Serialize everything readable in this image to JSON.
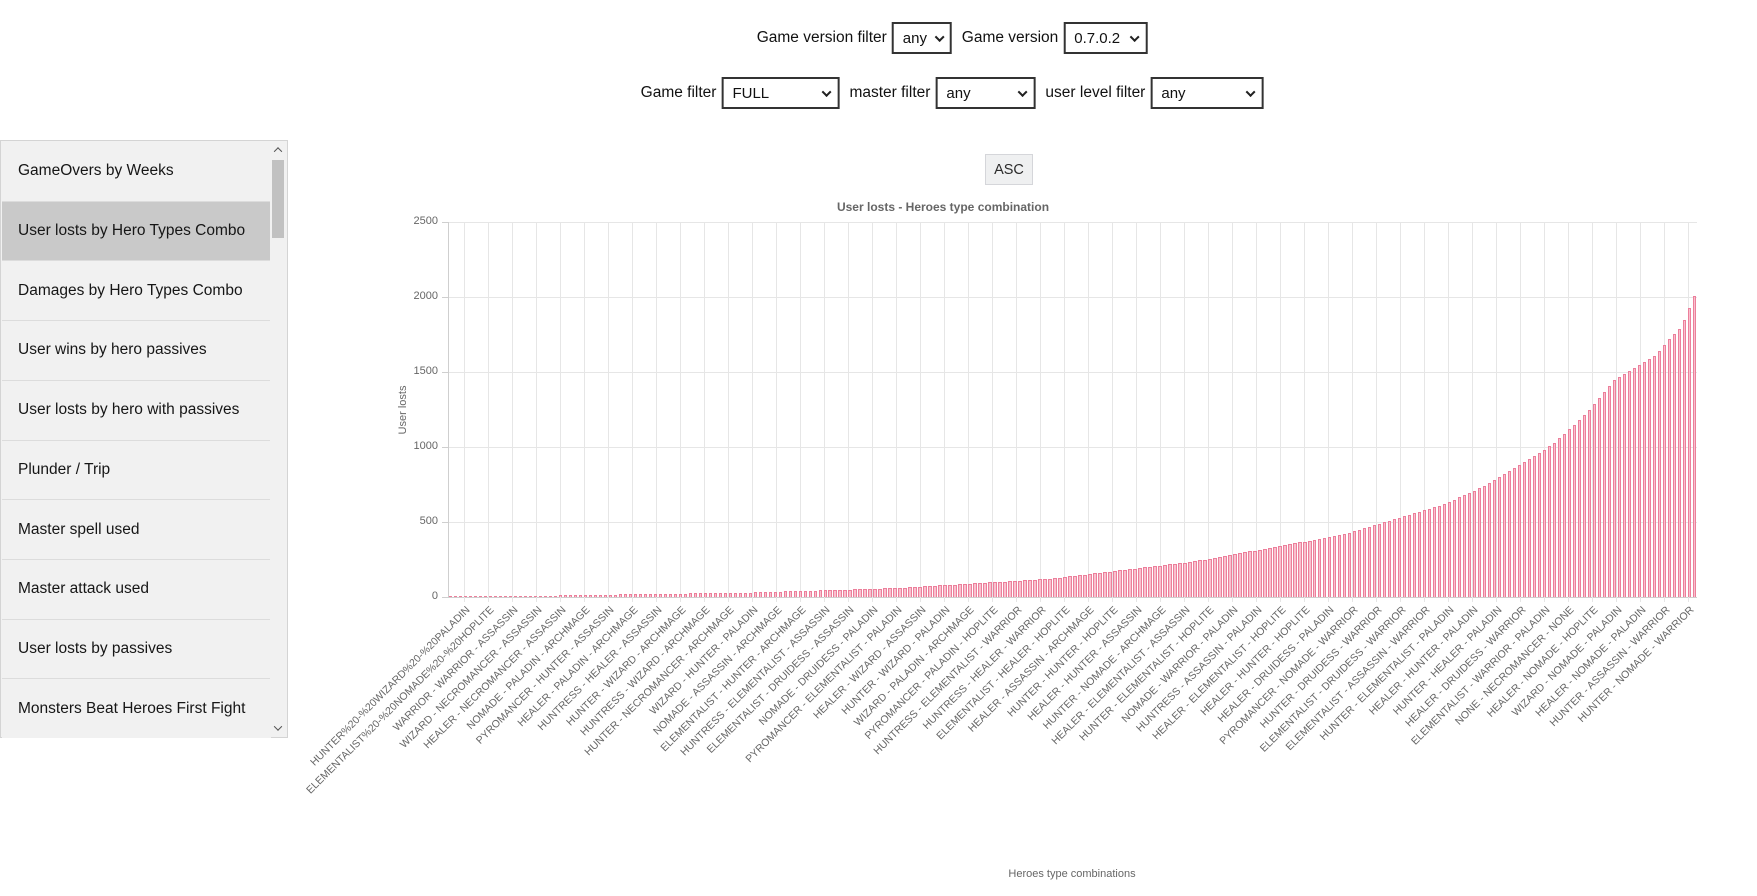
{
  "filters": {
    "row1": [
      {
        "name": "game-version-filter",
        "label": "Game version filter",
        "value": "any"
      },
      {
        "name": "game-version",
        "label": "Game version",
        "value": "0.7.0.2"
      }
    ],
    "row2": [
      {
        "name": "game-filter",
        "label": "Game filter",
        "value": "FULL"
      },
      {
        "name": "master-filter",
        "label": "master filter",
        "value": "any"
      },
      {
        "name": "user-level-filter",
        "label": "user level filter",
        "value": "any"
      }
    ]
  },
  "sidebar": {
    "items": [
      {
        "label": "GameOvers by Weeks",
        "selected": false
      },
      {
        "label": "User losts by Hero Types Combo",
        "selected": true
      },
      {
        "label": "Damages by Hero Types Combo",
        "selected": false
      },
      {
        "label": "User wins by hero passives",
        "selected": false
      },
      {
        "label": "User losts by hero with passives",
        "selected": false
      },
      {
        "label": "Plunder / Trip",
        "selected": false
      },
      {
        "label": "Master spell used",
        "selected": false
      },
      {
        "label": "Master attack used",
        "selected": false
      },
      {
        "label": "User losts by passives",
        "selected": false
      },
      {
        "label": "Monsters Beat Heroes First Fight",
        "selected": false
      }
    ]
  },
  "sort_button": {
    "label": "ASC"
  },
  "chart_data": {
    "type": "bar",
    "title": "User losts - Heroes type combination",
    "xlabel": "Heroes type combinations",
    "ylabel": "User losts",
    "ylim": [
      0,
      2500
    ],
    "y_ticks": [
      0,
      500,
      1000,
      1500,
      2000,
      2500
    ],
    "grid": true,
    "legend": "none",
    "bar_fill": "#f9c0ce",
    "bar_border": "#ec7f9b",
    "x_tick_labels": [
      "HUNTER%20-%20WIZARD%20-%20PALADIN",
      "ELEMENTALIST%20-%20NOMADE%20-%20HOPLITE",
      "WARRIOR - WARRIOR - ASSASSIN",
      "WIZARD - NECROMANCER - ASSASSIN",
      "HEALER - NECROMANCER - ASSASSIN",
      "NOMADE - PALADIN - ARCHMAGE",
      "PYROMANCER - HUNTER - ASSASSIN",
      "HEALER - PALADIN - ARCHMAGE",
      "HUNTRESS - HEALER - ASSASSIN",
      "HUNTER - WIZARD - ARCHMAGE",
      "HUNTRESS - WIZARD - ARCHMAGE",
      "HUNTER - NECROMANCER - ARCHMAGE",
      "WIZARD - HUNTER - PALADIN",
      "NOMADE - ASSASSIN - ARCHMAGE",
      "ELEMENTALIST - HUNTER - ARCHMAGE",
      "HUNTRESS - ELEMENTALIST - ASSASSIN",
      "ELEMENTALIST - DRUIDESS - ASSASSIN",
      "NOMADE - DRUIDESS - PALADIN",
      "PYROMANCER - ELEMENTALIST - PALADIN",
      "HEALER - WIZARD - ASSASSIN",
      "HUNTER - WIZARD - PALADIN",
      "WIZARD - PALADIN - ARCHMAGE",
      "PYROMANCER - PALADIN - HOPLITE",
      "HUNTRESS - ELEMENTALIST - WARRIOR",
      "HUNTRESS - HEALER - WARRIOR",
      "ELEMENTALIST - HEALER - HOPLITE",
      "HEALER - ASSASSIN - ARCHMAGE",
      "HUNTER - HUNTER - HOPLITE",
      "HEALER - HUNTER - ASSASSIN",
      "HUNTER - NOMADE - ARCHMAGE",
      "HEALER - ELEMENTALIST - ASSASSIN",
      "HUNTER - ELEMENTALIST - HOPLITE",
      "NOMADE - WARRIOR - PALADIN",
      "HUNTRESS - ASSASSIN - PALADIN",
      "HEALER - ELEMENTALIST - HOPLITE",
      "HEALER - HUNTER - HOPLITE",
      "HEALER - DRUIDESS - PALADIN",
      "PYROMANCER - NOMADE - WARRIOR",
      "HUNTER - DRUIDESS - WARRIOR",
      "ELEMENTALIST - DRUIDESS - WARRIOR",
      "ELEMENTALIST - ASSASSIN - WARRIOR",
      "HUNTER - ELEMENTALIST - PALADIN",
      "HEALER - HUNTER - PALADIN",
      "HUNTER - HEALER - PALADIN",
      "HEALER - DRUIDESS - WARRIOR",
      "ELEMENTALIST - WARRIOR - PALADIN",
      "NONE - NECROMANCER - NONE",
      "HEALER - NOMADE - HOPLITE",
      "WIZARD - NOMADE - PALADIN",
      "HEALER - NOMADE - PALADIN",
      "HUNTER - ASSASSIN - WARRIOR",
      "HUNTER - NOMADE - WARRIOR"
    ],
    "values": [
      1,
      1,
      1,
      2,
      2,
      2,
      3,
      3,
      4,
      4,
      5,
      5,
      6,
      6,
      7,
      7,
      8,
      8,
      9,
      9,
      10,
      10,
      11,
      11,
      12,
      12,
      13,
      13,
      14,
      14,
      15,
      15,
      16,
      16,
      17,
      17,
      18,
      18,
      19,
      19,
      20,
      20,
      21,
      21,
      22,
      22,
      23,
      23,
      24,
      24,
      25,
      25,
      26,
      26,
      27,
      27,
      28,
      28,
      29,
      29,
      30,
      31,
      32,
      33,
      34,
      35,
      36,
      37,
      38,
      39,
      40,
      41,
      42,
      43,
      44,
      45,
      46,
      47,
      48,
      49,
      50,
      51,
      52,
      53,
      54,
      55,
      56,
      57,
      58,
      59,
      61,
      63,
      65,
      67,
      69,
      71,
      73,
      75,
      77,
      79,
      81,
      83,
      85,
      87,
      89,
      91,
      93,
      95,
      97,
      99,
      101,
      103,
      105,
      107,
      109,
      111,
      113,
      115,
      117,
      119,
      122,
      126,
      130,
      134,
      138,
      142,
      146,
      150,
      154,
      158,
      162,
      166,
      170,
      174,
      178,
      182,
      186,
      190,
      194,
      198,
      202,
      206,
      210,
      214,
      218,
      222,
      226,
      230,
      234,
      238,
      244,
      250,
      256,
      262,
      268,
      274,
      280,
      286,
      292,
      298,
      304,
      310,
      316,
      322,
      328,
      334,
      340,
      346,
      352,
      358,
      364,
      370,
      376,
      382,
      388,
      394,
      400,
      406,
      412,
      418,
      428,
      438,
      448,
      458,
      468,
      478,
      488,
      498,
      508,
      518,
      528,
      538,
      548,
      558,
      568,
      578,
      588,
      598,
      608,
      618,
      635,
      650,
      665,
      680,
      695,
      710,
      725,
      740,
      760,
      780,
      800,
      820,
      840,
      860,
      880,
      900,
      920,
      940,
      960,
      980,
      1005,
      1030,
      1060,
      1090,
      1120,
      1150,
      1180,
      1215,
      1250,
      1290,
      1330,
      1370,
      1410,
      1450,
      1470,
      1490,
      1510,
      1530,
      1550,
      1570,
      1590,
      1610,
      1640,
      1680,
      1720,
      1755,
      1790,
      1850,
      1930,
      2010
    ]
  },
  "colors": {
    "sidebar_bg": "#f1f1f1",
    "sidebar_selected": "#c9c9c9",
    "bar_fill": "#f9c0ce",
    "bar_border": "#ec7f9b",
    "grid": "#e6e6e6",
    "chart_text": "#666666"
  }
}
